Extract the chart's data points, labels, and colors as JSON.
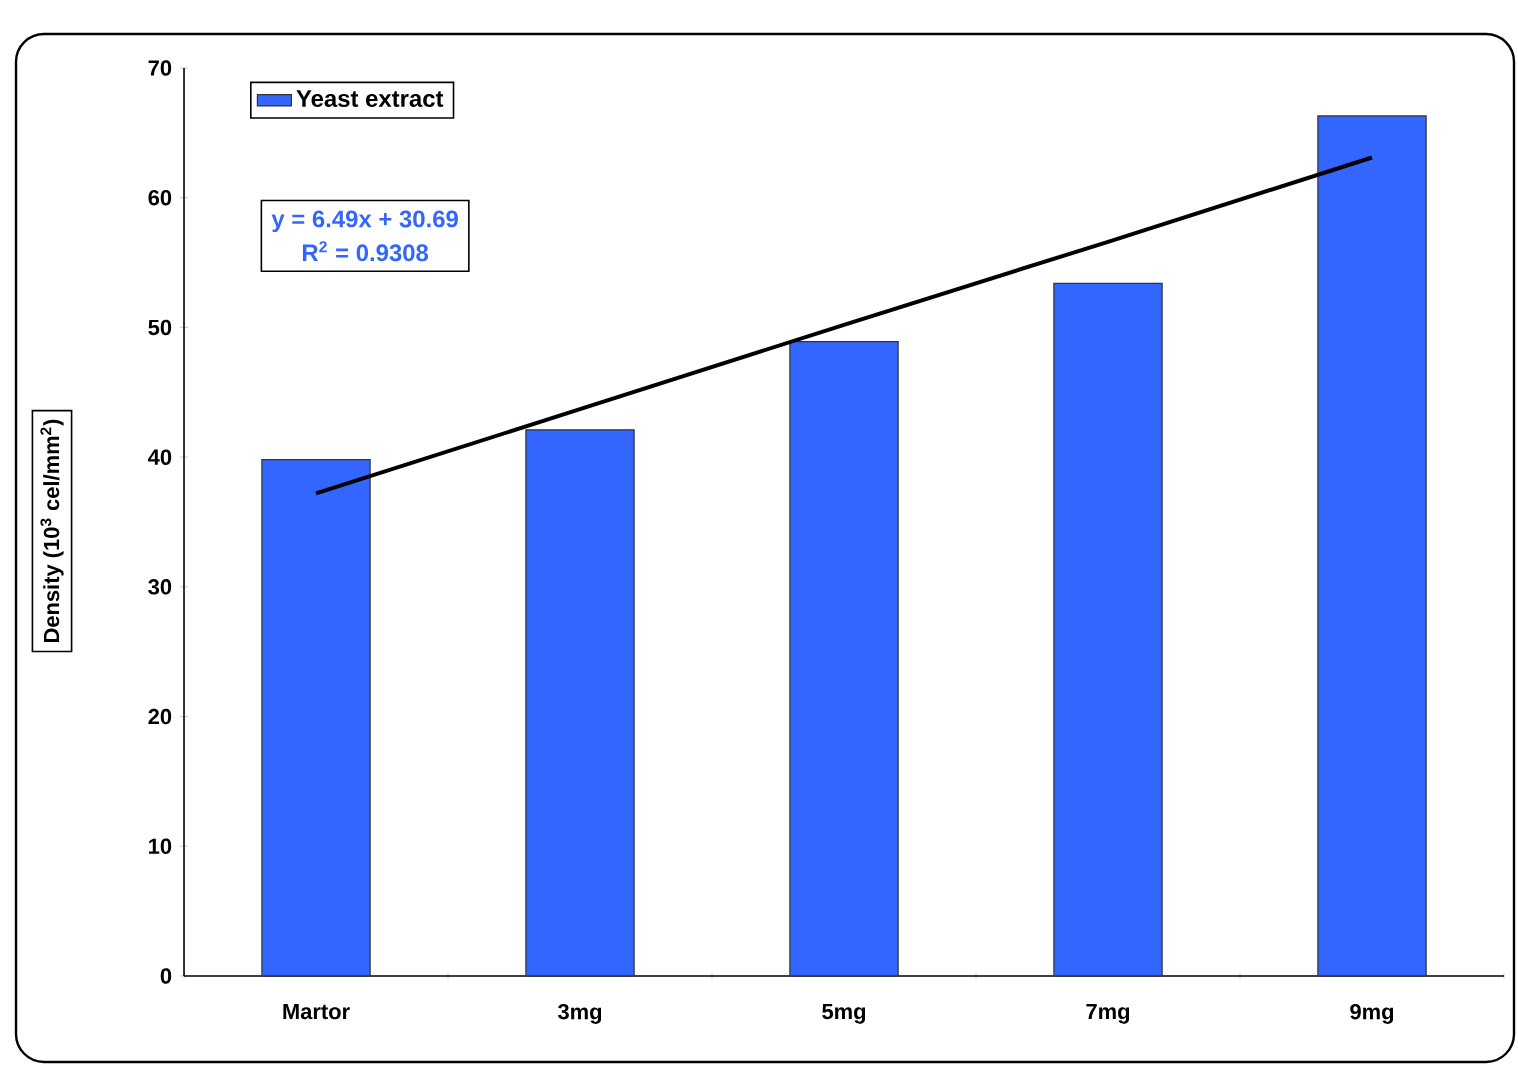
{
  "chart_data": {
    "type": "bar",
    "ylabel": "Density  (10$^{3}$ cel/mm$^{2}$)",
    "categories": [
      "Martor",
      "3mg",
      "5mg",
      "7mg",
      "9mg"
    ],
    "series": [
      {
        "name": "Yeast extract",
        "color": "#3366ff",
        "values": [
          39.8,
          42.1,
          48.9,
          53.4,
          66.3
        ]
      },
      {
        "type": "line",
        "color": "#000000",
        "values": [
          37.2,
          43.7,
          50.2,
          56.6,
          63.1
        ]
      }
    ],
    "ylim": [
      0,
      70
    ],
    "yticks": [
      0,
      10,
      20,
      30,
      40,
      50,
      60,
      70
    ],
    "legend": "top left",
    "annotations": [
      "y = 6.49x + 30.69",
      "R$^{2}$ = 0.9308"
    ]
  }
}
